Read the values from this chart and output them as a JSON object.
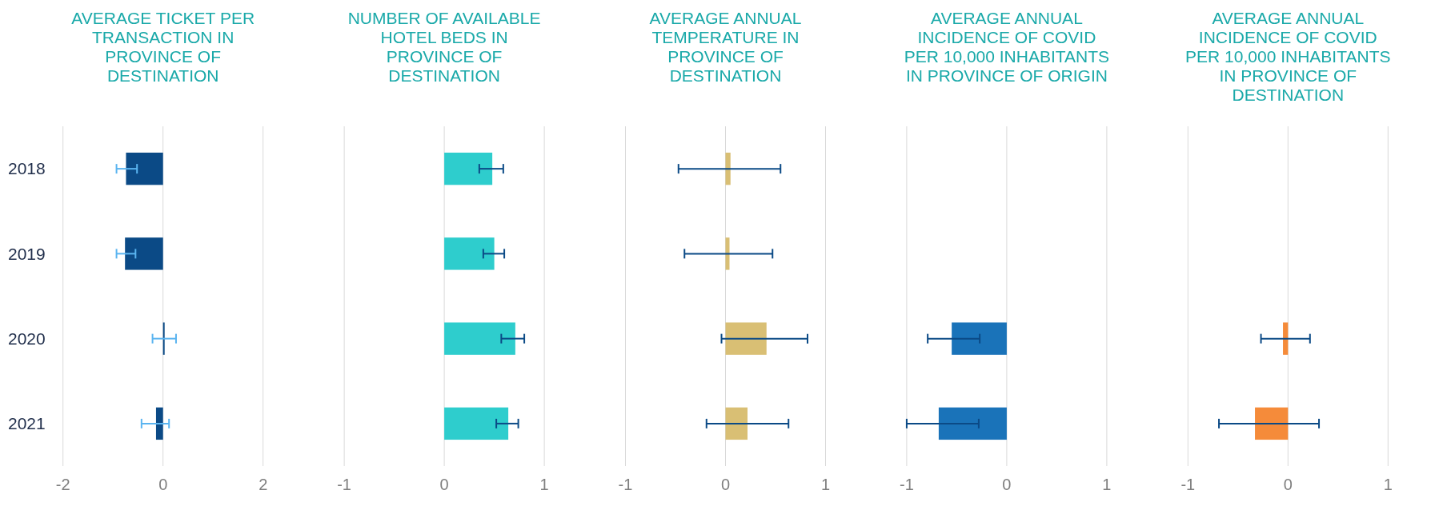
{
  "chart_data": [
    {
      "type": "bar",
      "orientation": "horizontal",
      "title": "AVERAGE TICKET PER TRANSACTION IN PROVINCE OF DESTINATION",
      "categories": [
        "2018",
        "2019",
        "2020",
        "2021"
      ],
      "values": [
        -0.74,
        -0.76,
        0.03,
        -0.14
      ],
      "color": "#0b4a86",
      "errors": [
        [
          -0.93,
          -0.52
        ],
        [
          -0.93,
          -0.55
        ],
        [
          -0.21,
          0.26
        ],
        [
          -0.43,
          0.12
        ]
      ],
      "xlim": [
        -2,
        2
      ],
      "xticks": [
        -2,
        0,
        2
      ],
      "grid": "x"
    },
    {
      "type": "bar",
      "orientation": "horizontal",
      "title": "NUMBER OF AVAILABLE HOTEL BEDS IN PROVINCE OF DESTINATION",
      "values": [
        0.48,
        0.5,
        0.71,
        0.64
      ],
      "color": "#2ecdcd",
      "errors": [
        [
          0.35,
          0.59
        ],
        [
          0.39,
          0.6
        ],
        [
          0.57,
          0.8
        ],
        [
          0.52,
          0.74
        ]
      ],
      "xlim": [
        -1,
        1
      ],
      "xticks": [
        -1,
        0,
        1
      ],
      "grid": "x",
      "tick_labels": "x"
    },
    {
      "type": "bar",
      "orientation": "horizontal",
      "title": "AVERAGE ANNUAL TEMPERATURE IN PROVINCE OF DESTINATION",
      "values": [
        0.05,
        0.04,
        0.41,
        0.22
      ],
      "color": "#d9bf74",
      "errors": [
        [
          -0.47,
          0.55
        ],
        [
          -0.41,
          0.47
        ],
        [
          -0.04,
          0.82
        ],
        [
          -0.19,
          0.63
        ]
      ],
      "xlim": [
        -1,
        1
      ],
      "xticks": [
        -1,
        0,
        1
      ],
      "grid": "x",
      "tick_labels": "x"
    },
    {
      "type": "bar",
      "orientation": "horizontal",
      "title": "AVERAGE ANNUAL INCIDENCE OF COVID PER 10,000 INHABITANTS IN PROVINCE OF ORIGIN",
      "values": [
        null,
        null,
        -0.55,
        -0.68
      ],
      "color": "#1a73b9",
      "errors": [
        null,
        null,
        [
          -0.79,
          -0.27
        ],
        [
          -1,
          -0.28
        ]
      ],
      "xlim": [
        -1,
        1
      ],
      "xticks": [
        -1,
        0,
        1
      ],
      "grid": "x",
      "tick_labels": "x"
    },
    {
      "type": "bar",
      "orientation": "horizontal",
      "title": "AVERAGE ANNUAL INCIDENCE OF COVID PER 10,000 INHABITANTS IN PROVINCE OF DESTINATION",
      "values": [
        null,
        null,
        -0.05,
        -0.33
      ],
      "color": "#f58b3a",
      "errors": [
        null,
        null,
        [
          -0.27,
          0.22
        ],
        [
          -0.69,
          0.31
        ]
      ],
      "xlim": [
        -1,
        1
      ],
      "xticks": [
        -1,
        0,
        1
      ],
      "grid": "x",
      "tick_labels": "x"
    }
  ]
}
